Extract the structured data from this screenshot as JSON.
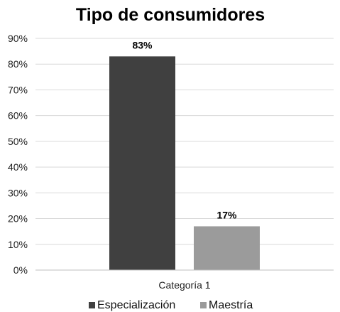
{
  "chart_data": {
    "type": "bar",
    "title": "Tipo de consumidores",
    "categories": [
      "Categoría 1"
    ],
    "series": [
      {
        "name": "Especialización",
        "values": [
          83
        ],
        "label": "83%",
        "color": "#404040"
      },
      {
        "name": "Maestría",
        "values": [
          17
        ],
        "label": "17%",
        "color": "#9b9b9b"
      }
    ],
    "ylim": [
      0,
      90
    ],
    "yticks": [
      "0%",
      "10%",
      "20%",
      "30%",
      "40%",
      "50%",
      "60%",
      "70%",
      "80%",
      "90%"
    ],
    "grid": true,
    "legend_position": "bottom"
  }
}
